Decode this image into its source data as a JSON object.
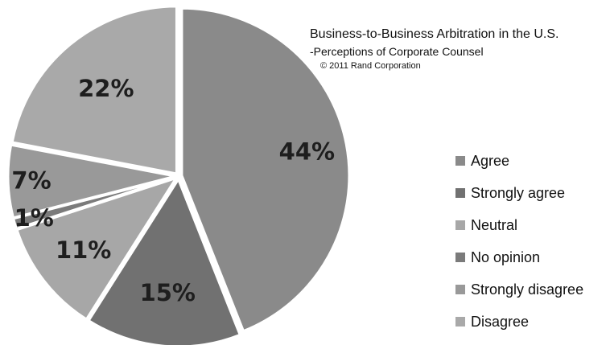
{
  "chart_data": {
    "type": "pie",
    "title": "Business-to-Business Arbitration in the U.S.",
    "subtitle": "-Perceptions of Corporate Counsel",
    "source": "© 2011 Rand Corporation",
    "slices": [
      {
        "name": "Agree",
        "value": 44,
        "label": "44%",
        "color": "#8a8a8a"
      },
      {
        "name": "Strongly agree",
        "value": 15,
        "label": "15%",
        "color": "#717171"
      },
      {
        "name": "Neutral",
        "value": 11,
        "label": "11%",
        "color": "#a7a7a7"
      },
      {
        "name": "No opinion",
        "value": 1,
        "label": "1%",
        "color": "#7b7b7b"
      },
      {
        "name": "Strongly disagree",
        "value": 7,
        "label": "7%",
        "color": "#999999"
      },
      {
        "name": "Disagree",
        "value": 22,
        "label": "22%",
        "color": "#a9a9a9"
      }
    ],
    "legend_position": "right"
  }
}
